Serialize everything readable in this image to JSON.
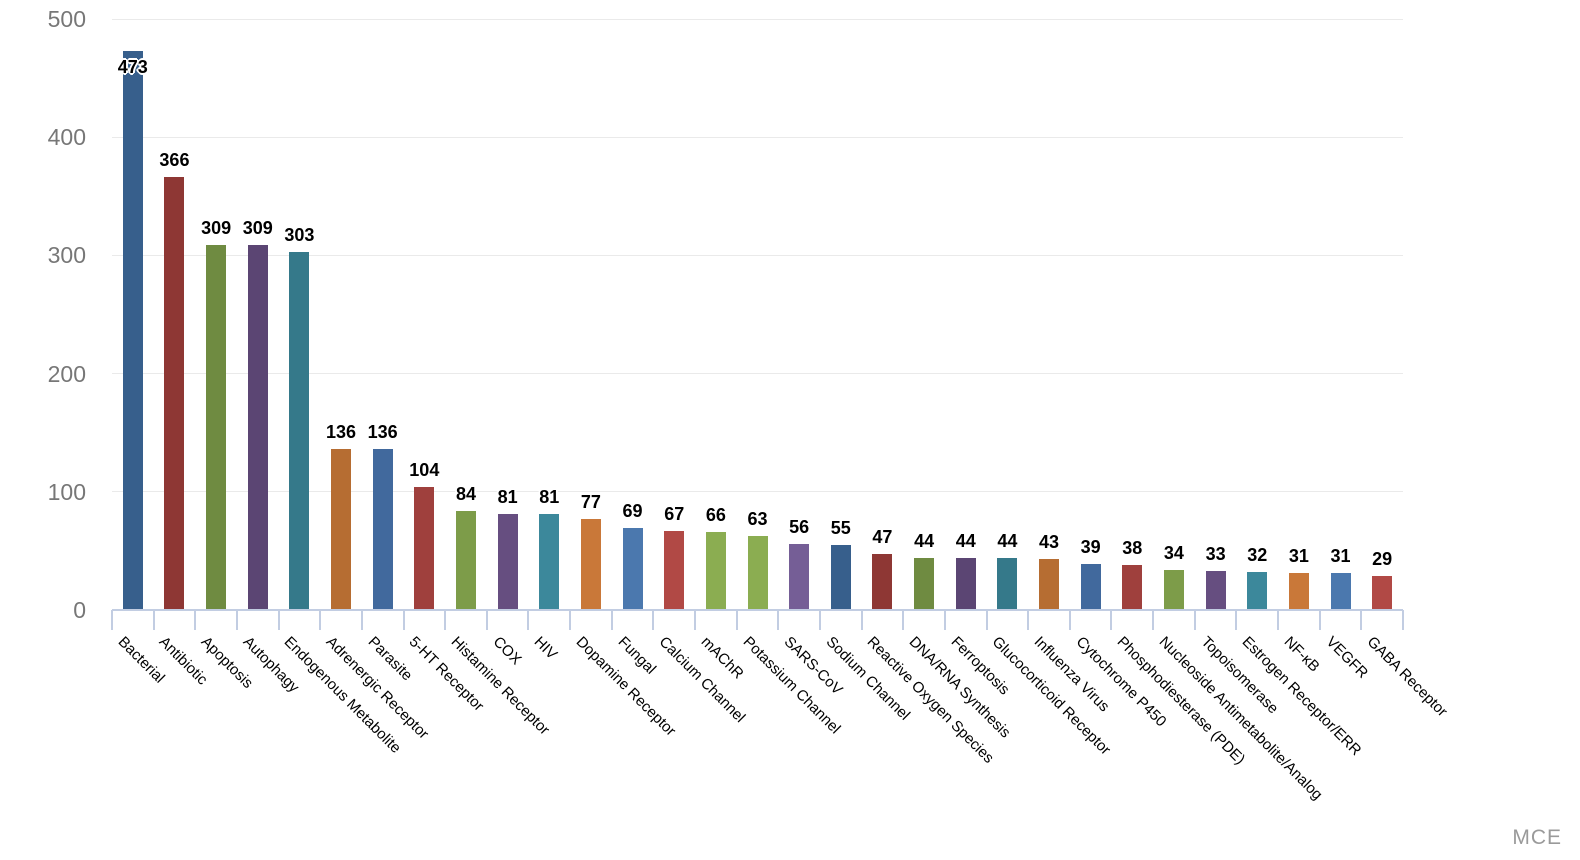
{
  "watermark": "MCE",
  "chart_data": {
    "type": "bar",
    "title": "",
    "xlabel": "",
    "ylabel": "",
    "ylim": [
      0,
      500
    ],
    "yticks": [
      0,
      100,
      200,
      300,
      400,
      500
    ],
    "grid": true,
    "legend": false,
    "value_labels": true,
    "categories": [
      "Bacterial",
      "Antibiotic",
      "Apoptosis",
      "Autophagy",
      "Endogenous Metabolite",
      "Adrenergic Receptor",
      "Parasite",
      "5-HT Receptor",
      "Histamine Receptor",
      "COX",
      "HIV",
      "Dopamine Receptor",
      "Fungal",
      "Calcium Channel",
      "mAChR",
      "Potassium Channel",
      "SARS-CoV",
      "Sodium Channel",
      "Reactive Oxygen Species",
      "DNA/RNA Synthesis",
      "Ferroptosis",
      "Glucocorticoid Receptor",
      "Influenza Virus",
      "Cytochrome P450",
      "Phosphodiesterase (PDE)",
      "Nucleoside Antimetabolite/Analog",
      "Topoisomerase",
      "Estrogen Receptor/ERR",
      "NF-κB",
      "VEGFR",
      "GABA Receptor"
    ],
    "values": [
      473,
      366,
      309,
      309,
      303,
      136,
      136,
      104,
      84,
      81,
      81,
      77,
      69,
      67,
      66,
      63,
      56,
      55,
      47,
      44,
      44,
      44,
      43,
      39,
      38,
      34,
      33,
      32,
      31,
      31,
      29
    ],
    "bar_colors": [
      "#375F8C",
      "#8E3734",
      "#6F8B41",
      "#5B4573",
      "#35798A",
      "#B66D32",
      "#41699D",
      "#9F403D",
      "#7D9C49",
      "#664E80",
      "#3C889B",
      "#C97839",
      "#4B78AE",
      "#B14945",
      "#8BAD51",
      "#8BAD51",
      "#755E96",
      "#375F8C",
      "#8E3734",
      "#6F8B41",
      "#5B4573",
      "#35798A",
      "#B66D32",
      "#41699D",
      "#9F403D",
      "#7D9C49",
      "#664E80",
      "#3C889B",
      "#C97839",
      "#4B78AE",
      "#B14945"
    ],
    "style": {
      "grid_color": "#EAEAEA",
      "axis_color": "#C2CDE2",
      "ytick_label_color": "#777777",
      "value_label_color": "#000000",
      "category_label_color": "#000000",
      "background": "#FFFFFF"
    }
  }
}
